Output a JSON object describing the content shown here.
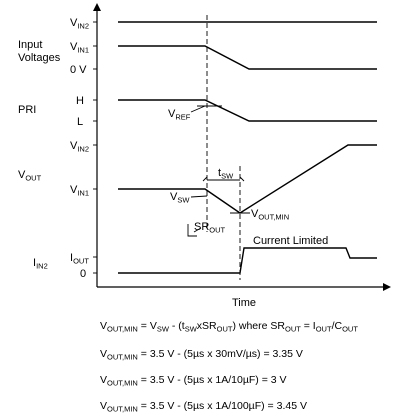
{
  "labels": {
    "vin2_top": {
      "main": "V",
      "sub": "IN2"
    },
    "vin1_top": {
      "main": "V",
      "sub": "IN1"
    },
    "zero_v": "0 V",
    "input_voltages_line1": "Input",
    "input_voltages_line2": "Voltages",
    "pri": "PRI",
    "pri_high": "H",
    "pri_low": "L",
    "vref": {
      "main": "V",
      "sub": "REF"
    },
    "vout": {
      "main": "V",
      "sub": "OUT"
    },
    "vout_vin2": {
      "main": "V",
      "sub": "IN2"
    },
    "vout_vin1": {
      "main": "V",
      "sub": "IN1"
    },
    "vsw": {
      "main": "V",
      "sub": "SW"
    },
    "tsw": {
      "main": "t",
      "sub": "SW"
    },
    "vout_min": {
      "main": "V",
      "sub": "OUT,MIN"
    },
    "sr_out": {
      "main": "SR",
      "sub": "OUT"
    },
    "iin2": {
      "main": "I",
      "sub": "IN2"
    },
    "iout": {
      "main": "I",
      "sub": "OUT"
    },
    "zero": "0",
    "current_limited": "Current Limited",
    "time": "Time"
  },
  "equations": [
    {
      "parts": [
        [
          "V",
          "n"
        ],
        [
          "OUT,MIN",
          "s"
        ],
        [
          " = V",
          "n"
        ],
        [
          "SW",
          "s"
        ],
        [
          " - (t",
          "n"
        ],
        [
          "SW",
          "s"
        ],
        [
          "xSR",
          "n"
        ],
        [
          "OUT",
          "s"
        ],
        [
          ") where SR",
          "n"
        ],
        [
          "OUT",
          "s"
        ],
        [
          " = I",
          "n"
        ],
        [
          "OUT",
          "s"
        ],
        [
          "/C",
          "n"
        ],
        [
          "OUT",
          "s"
        ]
      ]
    },
    {
      "parts": [
        [
          "V",
          "n"
        ],
        [
          "OUT,MIN",
          "s"
        ],
        [
          " = 3.5 V - (5µs x 30mV/µs) = 3.35 V",
          "n"
        ]
      ]
    },
    {
      "parts": [
        [
          "V",
          "n"
        ],
        [
          "OUT,MIN",
          "s"
        ],
        [
          " = 3.5 V - (5µs x 1A/10µF) = 3 V",
          "n"
        ]
      ]
    },
    {
      "parts": [
        [
          "V",
          "n"
        ],
        [
          "OUT,MIN",
          "s"
        ],
        [
          " = 3.5 V - (5µs x 1A/100µF) = 3.45 V",
          "n"
        ]
      ]
    }
  ]
}
